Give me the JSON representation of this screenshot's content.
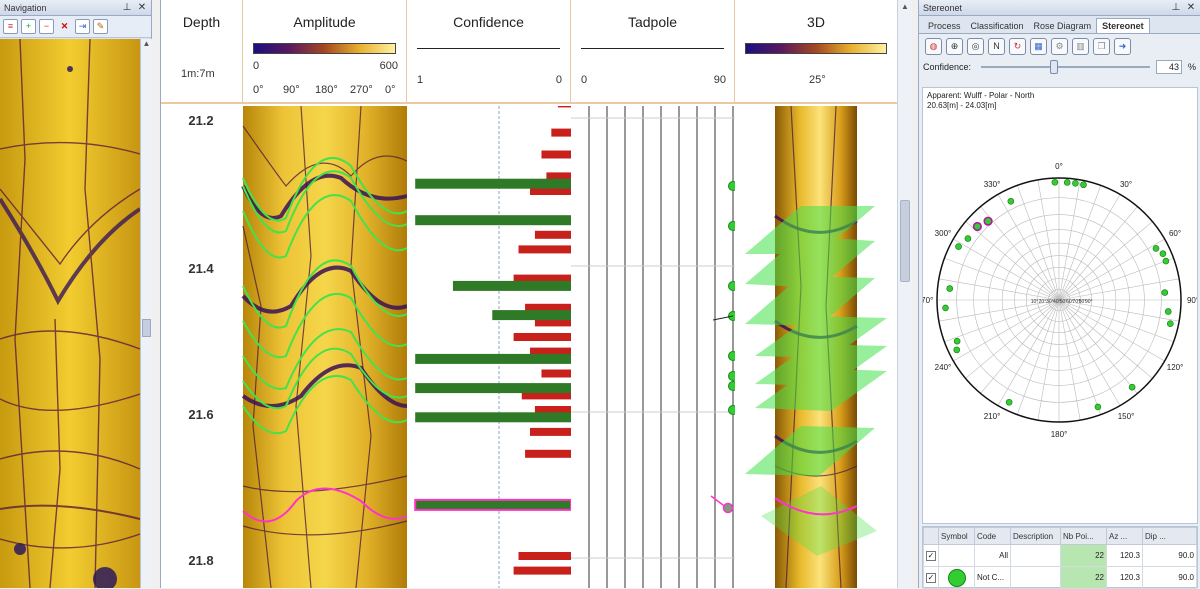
{
  "navigation": {
    "title": "Navigation",
    "pin_icon": "pin-icon",
    "close_icon": "close-icon",
    "toolbar_icons": [
      "list-icon",
      "add-icon",
      "remove-icon",
      "delete-icon",
      "separator",
      "export-icon",
      "settings-icon"
    ]
  },
  "log_header": {
    "depth": {
      "title": "Depth",
      "unit": "1m:7m"
    },
    "amplitude": {
      "title": "Amplitude",
      "min": "0",
      "max": "600",
      "ticks": [
        "0°",
        "90°",
        "180°",
        "270°",
        "0°"
      ]
    },
    "confidence": {
      "title": "Confidence",
      "left": "1",
      "right": "0"
    },
    "tadpole": {
      "title": "Tadpole",
      "left": "0",
      "right": "90"
    },
    "view3d": {
      "title": "3D",
      "angle": "25°"
    }
  },
  "depth_labels": [
    "21.2",
    "21.4",
    "21.6",
    "21.8"
  ],
  "stereonet": {
    "title": "Stereonet",
    "tabs": [
      "Process",
      "Classification",
      "Rose Diagram",
      "Stereonet"
    ],
    "active_tab": "Stereonet",
    "confidence_label": "Confidence:",
    "confidence_value": "43",
    "confidence_fraction": 0.43,
    "percent": "%",
    "info_line1": "Apparent: Wulff - Polar - North",
    "info_line2": "20.63[m] - 24.03[m]",
    "azimuth_labels": [
      "0°",
      "30°",
      "60°",
      "90°",
      "120°",
      "150°",
      "180°",
      "210°",
      "240°",
      "270°",
      "300°",
      "330°"
    ],
    "dip_labels": [
      "10°",
      "20°",
      "30°",
      "40°",
      "50°",
      "60°",
      "70°",
      "80°",
      "90°"
    ],
    "grid_headers": [
      "",
      "Symbol",
      "Code",
      "Description",
      "Nb Poi...",
      "Az ...",
      "Dip ..."
    ],
    "grid_rows": [
      {
        "code": "All",
        "description": "",
        "nb": "22",
        "az": "120.3",
        "dip": "90.0"
      },
      {
        "code": "Not C...",
        "description": "",
        "nb": "22",
        "az": "120.3",
        "dip": "90.0"
      }
    ],
    "icons": [
      "stereonet-icon",
      "target-icon",
      "globe-icon",
      "north-icon",
      "rotate-icon",
      "grid-icon",
      "settings-icon",
      "chart-icon",
      "copy-icon",
      "export-icon"
    ]
  },
  "colors": {
    "accent_green": "#2f7a26",
    "bar_red": "#c8201b",
    "pole_green": "#33cc33",
    "header_border": "#e8c9a4"
  },
  "chart_data": {
    "type": "bar",
    "title": "Confidence",
    "depth": [
      21.18,
      21.22,
      21.25,
      21.28,
      21.3,
      21.36,
      21.38,
      21.42,
      21.46,
      21.48,
      21.5,
      21.52,
      21.55,
      21.58,
      21.6,
      21.63,
      21.66,
      21.8,
      21.82
    ],
    "values": [
      0.08,
      0.12,
      0.18,
      0.15,
      0.25,
      0.22,
      0.32,
      0.35,
      0.28,
      0.22,
      0.35,
      0.25,
      0.18,
      0.3,
      0.22,
      0.25,
      0.28,
      0.32,
      0.35
    ],
    "picks_depth": [
      21.29,
      21.34,
      21.43,
      21.47,
      21.53,
      21.57,
      21.61,
      21.73
    ],
    "picks_confidence": [
      0.95,
      0.95,
      0.72,
      0.48,
      0.95,
      0.95,
      0.95,
      0.95
    ]
  }
}
